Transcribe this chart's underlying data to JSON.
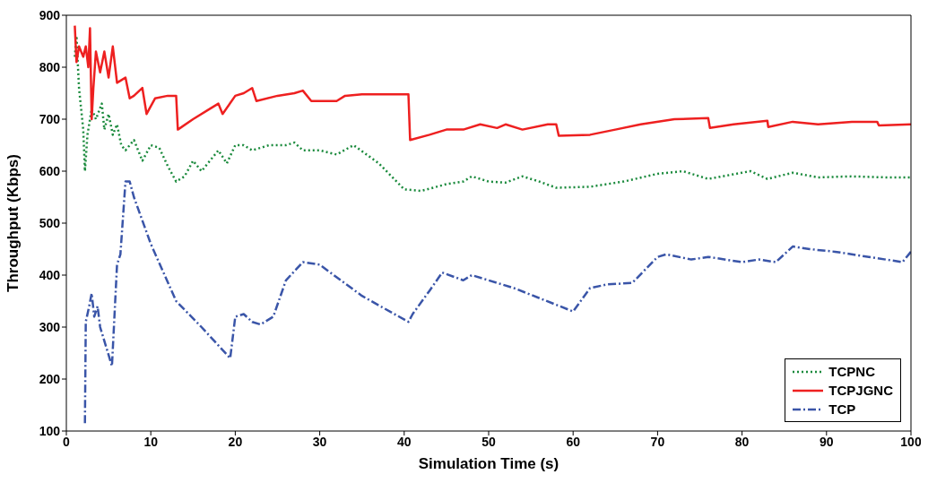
{
  "chart_data": {
    "type": "line",
    "xlabel": "Simulation Time (s)",
    "ylabel": "Throughput (Kbps)",
    "xlim": [
      0,
      100
    ],
    "xticks": [
      0,
      10,
      20,
      30,
      40,
      50,
      60,
      70,
      80,
      90,
      100
    ],
    "ylim": [
      100,
      900
    ],
    "yticks": [
      100,
      200,
      300,
      400,
      500,
      600,
      700,
      800,
      900
    ],
    "grid": false,
    "legend": "bottom right",
    "marker": "none",
    "series": [
      {
        "name": "TCPNC",
        "color": "#1a8a3c",
        "line_style": "dotted",
        "x": [
          1,
          1.2,
          1.5,
          2,
          2.2,
          2.5,
          3,
          3.5,
          4.2,
          4.5,
          5,
          5.5,
          6,
          6.5,
          7,
          8,
          9,
          10,
          11,
          12,
          13,
          14,
          15,
          16,
          18,
          19,
          20,
          21,
          22,
          24,
          26,
          27,
          28,
          30,
          32,
          34,
          37,
          40,
          42,
          45,
          47,
          48,
          50,
          52,
          54,
          56,
          58,
          62,
          66,
          70,
          73,
          76,
          80,
          81,
          83,
          86,
          89,
          93,
          97,
          100
        ],
        "values": [
          820,
          860,
          760,
          680,
          600,
          670,
          720,
          700,
          730,
          680,
          710,
          670,
          690,
          650,
          640,
          660,
          620,
          650,
          645,
          610,
          580,
          590,
          620,
          600,
          640,
          615,
          650,
          650,
          640,
          650,
          650,
          655,
          640,
          640,
          632,
          650,
          615,
          565,
          562,
          575,
          580,
          590,
          580,
          578,
          590,
          580,
          568,
          570,
          580,
          595,
          600,
          585,
          597,
          600,
          585,
          597,
          588,
          590,
          588,
          588
        ]
      },
      {
        "name": "TCPJGNC",
        "color": "#ee2020",
        "line_style": "solid",
        "x": [
          1,
          1.2,
          1.5,
          2,
          2.3,
          2.6,
          2.8,
          3,
          3.2,
          3.5,
          4,
          4.5,
          5,
          5.5,
          6,
          7,
          7.5,
          8,
          9,
          9.5,
          10.5,
          12,
          13,
          13.2,
          15,
          17,
          18,
          18.5,
          20,
          21,
          22,
          22.5,
          25,
          27,
          28,
          29,
          32,
          33,
          35,
          40.5,
          40.7,
          43,
          45,
          47,
          49,
          51,
          52,
          54,
          57,
          58,
          58.3,
          62,
          65,
          68,
          72,
          76,
          76.2,
          79,
          83,
          83.1,
          86,
          89,
          93,
          96,
          96.2,
          100
        ],
        "values": [
          880,
          810,
          840,
          820,
          840,
          800,
          875,
          700,
          760,
          830,
          790,
          830,
          780,
          840,
          770,
          780,
          740,
          745,
          760,
          710,
          740,
          745,
          745,
          680,
          700,
          720,
          730,
          710,
          745,
          750,
          760,
          735,
          745,
          750,
          755,
          735,
          735,
          745,
          748,
          748,
          660,
          670,
          680,
          680,
          690,
          683,
          690,
          680,
          690,
          690,
          668,
          670,
          680,
          690,
          700,
          702,
          683,
          690,
          697,
          685,
          695,
          690,
          695,
          695,
          688,
          690
        ]
      },
      {
        "name": "TCP",
        "color": "#3a55a8",
        "line_style": "dashed",
        "x": [
          2.2,
          2.3,
          2.7,
          3,
          3.3,
          3.7,
          4,
          5.4,
          6,
          6.4,
          7,
          7.5,
          8,
          10,
          13,
          16,
          19.4,
          20,
          21,
          22,
          23,
          24.5,
          26,
          28,
          30,
          35,
          40.5,
          41,
          43,
          44.5,
          47,
          48,
          53,
          60,
          62,
          64,
          67,
          70,
          71,
          74,
          76,
          80,
          82,
          84,
          86,
          88,
          91,
          95,
          99,
          100
        ],
        "values": [
          115,
          310,
          340,
          365,
          320,
          340,
          300,
          225,
          420,
          440,
          580,
          580,
          550,
          460,
          350,
          300,
          240,
          320,
          325,
          310,
          305,
          320,
          390,
          425,
          420,
          360,
          310,
          325,
          370,
          405,
          390,
          400,
          375,
          330,
          375,
          382,
          385,
          435,
          440,
          430,
          435,
          425,
          430,
          425,
          455,
          450,
          445,
          435,
          425,
          445
        ]
      }
    ]
  }
}
